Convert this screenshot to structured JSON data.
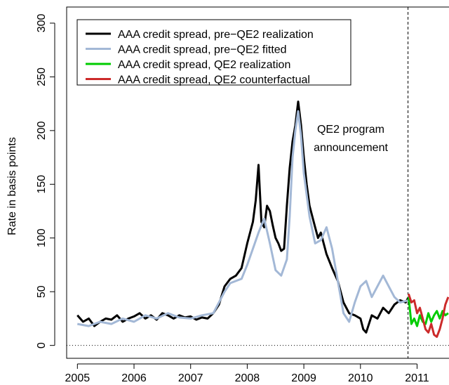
{
  "chart_data": {
    "type": "line",
    "y_label": "Rate in basis points",
    "annotation": [
      "QE2 program",
      "announcement"
    ],
    "vline": 2010.84,
    "hline": 0,
    "xlim": [
      2004.81,
      2011.75
    ],
    "xticks": [
      2005,
      2006,
      2007,
      2008,
      2009,
      2010,
      2011
    ],
    "ylim": [
      -12,
      315
    ],
    "yticks": [
      0,
      50,
      100,
      150,
      200,
      250,
      300
    ],
    "legend": "top-left",
    "series": [
      {
        "name": "AAA credit spread, pre−QE2 realization",
        "color": "#000000",
        "x": [
          2005.0,
          2005.1,
          2005.2,
          2005.3,
          2005.4,
          2005.5,
          2005.6,
          2005.7,
          2005.8,
          2005.9,
          2006.0,
          2006.1,
          2006.2,
          2006.3,
          2006.4,
          2006.5,
          2006.6,
          2006.7,
          2006.8,
          2006.9,
          2007.0,
          2007.1,
          2007.2,
          2007.3,
          2007.4,
          2007.5,
          2007.6,
          2007.7,
          2007.8,
          2007.9,
          2008.0,
          2008.1,
          2008.15,
          2008.2,
          2008.25,
          2008.3,
          2008.35,
          2008.4,
          2008.45,
          2008.5,
          2008.55,
          2008.6,
          2008.65,
          2008.7,
          2008.75,
          2008.8,
          2008.85,
          2008.9,
          2008.95,
          2009.0,
          2009.05,
          2009.1,
          2009.15,
          2009.2,
          2009.25,
          2009.3,
          2009.4,
          2009.5,
          2009.6,
          2009.7,
          2009.8,
          2009.9,
          2010.0,
          2010.05,
          2010.1,
          2010.2,
          2010.3,
          2010.4,
          2010.5,
          2010.6,
          2010.7,
          2010.8,
          2010.85
        ],
        "values": [
          28,
          22,
          25,
          18,
          22,
          25,
          24,
          28,
          22,
          25,
          27,
          30,
          25,
          28,
          24,
          30,
          28,
          25,
          28,
          26,
          27,
          24,
          26,
          25,
          30,
          38,
          55,
          62,
          65,
          72,
          95,
          115,
          135,
          168,
          115,
          110,
          130,
          125,
          112,
          100,
          95,
          88,
          90,
          130,
          165,
          190,
          205,
          227,
          205,
          175,
          150,
          130,
          120,
          110,
          100,
          105,
          85,
          72,
          60,
          40,
          30,
          28,
          25,
          15,
          12,
          28,
          25,
          35,
          30,
          38,
          42,
          40,
          45
        ]
      },
      {
        "name": "AAA credit spread, pre−QE2 fitted",
        "color": "#a3b8d6",
        "x": [
          2005.0,
          2005.2,
          2005.4,
          2005.6,
          2005.8,
          2006.0,
          2006.2,
          2006.4,
          2006.6,
          2006.8,
          2007.0,
          2007.2,
          2007.4,
          2007.5,
          2007.6,
          2007.7,
          2007.8,
          2007.9,
          2008.0,
          2008.1,
          2008.2,
          2008.3,
          2008.4,
          2008.5,
          2008.6,
          2008.7,
          2008.75,
          2008.8,
          2008.85,
          2008.9,
          2008.95,
          2009.0,
          2009.1,
          2009.2,
          2009.3,
          2009.4,
          2009.5,
          2009.6,
          2009.7,
          2009.8,
          2009.9,
          2010.0,
          2010.1,
          2010.2,
          2010.3,
          2010.4,
          2010.5,
          2010.6,
          2010.7,
          2010.85
        ],
        "values": [
          20,
          18,
          22,
          20,
          25,
          22,
          28,
          25,
          30,
          26,
          25,
          28,
          30,
          40,
          50,
          58,
          60,
          62,
          75,
          90,
          105,
          118,
          95,
          70,
          65,
          80,
          120,
          175,
          200,
          218,
          195,
          160,
          120,
          95,
          98,
          110,
          90,
          60,
          30,
          22,
          40,
          55,
          60,
          45,
          55,
          65,
          55,
          45,
          40,
          42
        ]
      },
      {
        "name": "AAA credit spread, QE2 realization",
        "color": "#00cc00",
        "x": [
          2010.85,
          2010.9,
          2010.95,
          2011.0,
          2011.05,
          2011.1,
          2011.15,
          2011.2,
          2011.25,
          2011.3,
          2011.35,
          2011.4,
          2011.45,
          2011.5,
          2011.55
        ],
        "values": [
          45,
          20,
          25,
          18,
          28,
          22,
          20,
          30,
          22,
          28,
          32,
          25,
          32,
          28,
          30
        ]
      },
      {
        "name": "AAA credit spread, QE2 counterfactual",
        "color": "#cc2a2a",
        "x": [
          2010.85,
          2010.9,
          2010.95,
          2011.0,
          2011.05,
          2011.1,
          2011.15,
          2011.2,
          2011.25,
          2011.3,
          2011.35,
          2011.4,
          2011.45,
          2011.5,
          2011.55
        ],
        "values": [
          48,
          40,
          42,
          30,
          35,
          25,
          15,
          12,
          20,
          10,
          8,
          15,
          25,
          38,
          45
        ]
      }
    ]
  }
}
